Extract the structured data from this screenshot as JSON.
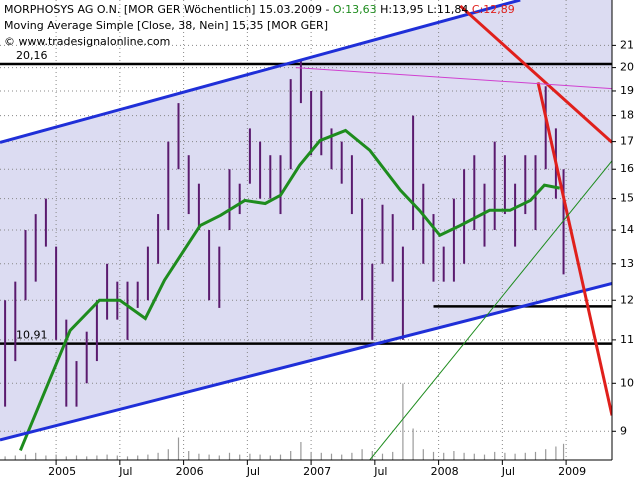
{
  "chart_data": {
    "type": "stock",
    "header": {
      "symbol": "MORPHOSYS AG O.N. [MOR GER  Wöchentlich] 15.03.2009 -",
      "open": "O:13,63",
      "high": "H:13,95",
      "low": "L:11,84",
      "close": "C:12,89",
      "indicator": "Moving Average Simple [Close, 38, Nein] 15,35 [MOR GER]",
      "copyright": "© www.tradesignalonline.com"
    },
    "log_y": true,
    "grid": true,
    "xlim": [
      2004.56,
      2009.36
    ],
    "ylim": [
      8.45,
      23.2
    ],
    "xticks": [
      2005,
      {
        "value": 2005.5,
        "label": "Jul"
      },
      2006,
      {
        "value": 2006.5,
        "label": "Jul"
      },
      2007,
      {
        "value": 2007.5,
        "label": "Jul"
      },
      2008,
      {
        "value": 2008.5,
        "label": "Jul"
      },
      2009
    ],
    "yticks": [
      9,
      10,
      11,
      12,
      13,
      14,
      15,
      16,
      17,
      18,
      19,
      20,
      21
    ],
    "bars": {
      "color": "#5a1a6e",
      "x": [
        2004.6,
        2004.68,
        2004.76,
        2004.84,
        2004.92,
        2005.0,
        2005.08,
        2005.16,
        2005.24,
        2005.32,
        2005.4,
        2005.48,
        2005.56,
        2005.64,
        2005.72,
        2005.8,
        2005.88,
        2005.96,
        2006.04,
        2006.12,
        2006.2,
        2006.28,
        2006.36,
        2006.44,
        2006.52,
        2006.6,
        2006.68,
        2006.76,
        2006.84,
        2006.92,
        2007.0,
        2007.08,
        2007.16,
        2007.24,
        2007.32,
        2007.4,
        2007.48,
        2007.56,
        2007.64,
        2007.72,
        2007.8,
        2007.88,
        2007.96,
        2008.04,
        2008.12,
        2008.2,
        2008.28,
        2008.36,
        2008.44,
        2008.52,
        2008.6,
        2008.68,
        2008.76,
        2008.84,
        2008.92,
        2008.98
      ],
      "high": [
        12,
        12.5,
        14,
        14.5,
        15,
        13.5,
        11.5,
        10.5,
        11.2,
        12,
        13,
        12.5,
        12.5,
        12.5,
        13.5,
        14.5,
        17,
        18.5,
        16.5,
        15.5,
        14,
        13.5,
        16,
        15.5,
        17.5,
        17,
        16.5,
        16.5,
        19.5,
        20.3,
        19,
        19,
        17.5,
        17,
        16.5,
        15,
        13,
        14.8,
        14.5,
        13.5,
        18,
        15.5,
        14.5,
        13.5,
        15,
        16,
        16.5,
        15.5,
        17,
        16.5,
        15.5,
        16.5,
        16.5,
        19.2,
        17.5,
        16
      ],
      "low": [
        9.5,
        10.5,
        12,
        12.5,
        13.5,
        11,
        9.5,
        9.5,
        10,
        10.5,
        11.5,
        11.5,
        11,
        11.8,
        12,
        13,
        14,
        16,
        14.5,
        14,
        12,
        11.8,
        14,
        14.5,
        15.5,
        15,
        15,
        14.5,
        16,
        18.5,
        16.5,
        16.5,
        16,
        15.5,
        14.5,
        12,
        11,
        13,
        12.5,
        11,
        14,
        13,
        12.5,
        12.5,
        12.5,
        13,
        14,
        13.5,
        14,
        14.5,
        13.5,
        14.5,
        14,
        16,
        15,
        12.7
      ],
      "volume": [
        4,
        5,
        6,
        8,
        5,
        6,
        4,
        5,
        4,
        5,
        6,
        5,
        4,
        5,
        6,
        8,
        12,
        25,
        10,
        7,
        6,
        5,
        8,
        6,
        7,
        6,
        5,
        6,
        10,
        20,
        9,
        8,
        7,
        6,
        8,
        12,
        10,
        7,
        9,
        85,
        35,
        12,
        9,
        8,
        10,
        8,
        7,
        6,
        9,
        8,
        7,
        8,
        9,
        12,
        15,
        18
      ],
      "volume_lim": [
        0,
        100
      ]
    },
    "ma": {
      "color": "#1e8c1e",
      "x": [
        2004.72,
        2005.11,
        2005.34,
        2005.5,
        2005.7,
        2005.85,
        2006.13,
        2006.29,
        2006.48,
        2006.64,
        2006.76,
        2006.91,
        2007.07,
        2007.27,
        2007.46,
        2007.7,
        2007.85,
        2008.01,
        2008.17,
        2008.4,
        2008.56,
        2008.72,
        2008.83,
        2008.95
      ],
      "values": [
        8.63,
        11.23,
        12.0,
        12.0,
        11.53,
        12.54,
        14.14,
        14.46,
        14.94,
        14.84,
        15.11,
        16.14,
        17.04,
        17.42,
        16.68,
        15.28,
        14.62,
        13.84,
        14.14,
        14.62,
        14.62,
        14.94,
        15.45,
        15.35
      ]
    },
    "levels": [
      {
        "value": 20.16,
        "label": "20,16"
      },
      {
        "value": 10.91,
        "label": "10,91"
      }
    ],
    "support": {
      "value": 11.84,
      "from": 2007.96
    },
    "lines": [
      {
        "color": "#1f2fd8",
        "width": 3,
        "x": [
          2004.56,
          2008.64
        ],
        "y": [
          16.97,
          23.2
        ]
      },
      {
        "color": "#1f2fd8",
        "width": 3,
        "x": [
          2004.56,
          2009.36
        ],
        "y": [
          8.83,
          12.45
        ]
      },
      {
        "color": "#e0201c",
        "width": 3,
        "x": [
          2008.17,
          2009.36
        ],
        "y": [
          22.9,
          16.97
        ]
      },
      {
        "color": "#e0201c",
        "width": 3,
        "x": [
          2008.78,
          2009.36
        ],
        "y": [
          19.36,
          9.32
        ]
      },
      {
        "color": "#d040d0",
        "width": 1,
        "x": [
          2006.88,
          2009.36
        ],
        "y": [
          20.0,
          19.1
        ]
      },
      {
        "color": "#1e8c1e",
        "width": 1,
        "x": [
          2007.46,
          2009.36
        ],
        "y": [
          8.45,
          16.3
        ]
      }
    ],
    "channel_fill": "#dcdcf2"
  }
}
